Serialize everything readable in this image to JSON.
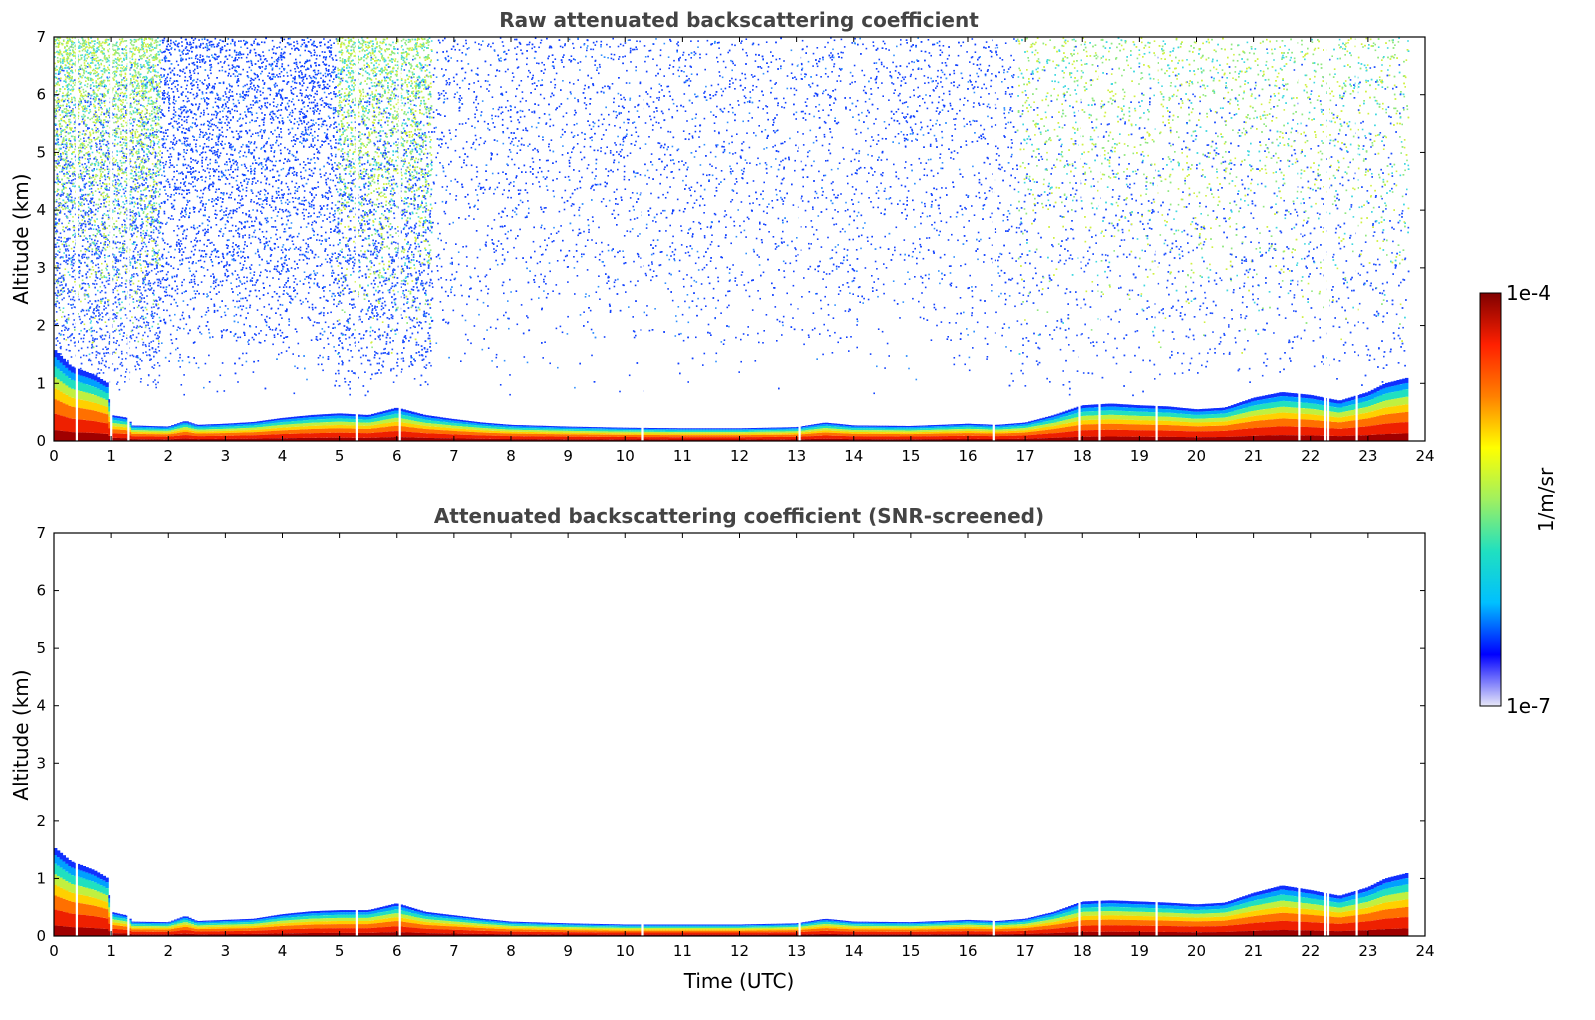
{
  "chart_data": [
    {
      "type": "heatmap",
      "title": "Raw attenuated backscattering coefficient",
      "xlabel": "",
      "ylabel": "Altitude (km)",
      "xlim": [
        0,
        24
      ],
      "ylim": [
        0,
        7
      ],
      "xticks": [
        "0",
        "1",
        "2",
        "3",
        "4",
        "5",
        "6",
        "7",
        "8",
        "9",
        "10",
        "11",
        "12",
        "13",
        "14",
        "15",
        "16",
        "17",
        "18",
        "19",
        "20",
        "21",
        "22",
        "23",
        "24"
      ],
      "yticks": [
        "0",
        "1",
        "2",
        "3",
        "4",
        "5",
        "6",
        "7"
      ],
      "data_end_hour": 23.7,
      "noise_fill": true,
      "noise_blocks": [
        {
          "x0": 0.0,
          "x1": 1.85,
          "strength": "high"
        },
        {
          "x0": 1.85,
          "x1": 4.95,
          "strength": "low"
        },
        {
          "x0": 4.95,
          "x1": 6.6,
          "strength": "high"
        },
        {
          "x0": 6.6,
          "x1": 16.85,
          "strength": "low"
        },
        {
          "x0": 16.85,
          "x1": 23.7,
          "strength": "high"
        }
      ],
      "boundary_layer_top_km": {
        "x": [
          0,
          0.3,
          0.7,
          0.95,
          1.0,
          1.3,
          1.35,
          2.0,
          2.3,
          2.5,
          3.0,
          3.5,
          4.0,
          4.5,
          5.0,
          5.5,
          6.0,
          6.5,
          7.0,
          7.5,
          8.0,
          9.0,
          10.0,
          11.0,
          12.0,
          13.0,
          13.5,
          14.0,
          15.0,
          16.0,
          16.5,
          17.0,
          17.5,
          18.0,
          18.5,
          19.0,
          19.5,
          20.0,
          20.5,
          21.0,
          21.5,
          22.0,
          22.5,
          23.0,
          23.3,
          23.7
        ],
        "y": [
          1.6,
          1.3,
          1.15,
          1.0,
          0.45,
          0.4,
          0.27,
          0.25,
          0.35,
          0.28,
          0.3,
          0.33,
          0.4,
          0.45,
          0.48,
          0.45,
          0.58,
          0.45,
          0.38,
          0.32,
          0.28,
          0.25,
          0.23,
          0.22,
          0.22,
          0.24,
          0.32,
          0.27,
          0.26,
          0.3,
          0.28,
          0.32,
          0.45,
          0.62,
          0.65,
          0.62,
          0.6,
          0.55,
          0.58,
          0.75,
          0.85,
          0.8,
          0.7,
          0.85,
          1.0,
          1.1
        ]
      },
      "data_gaps_hours": [
        0.4,
        1.0,
        1.3,
        5.3,
        6.05,
        10.3,
        13.05,
        16.45,
        17.95,
        18.3,
        19.3,
        21.8,
        22.25,
        22.3,
        22.8
      ]
    },
    {
      "type": "heatmap",
      "title": "Attenuated backscattering coefficient (SNR-screened)",
      "xlabel": "Time (UTC)",
      "ylabel": "Altitude (km)",
      "xlim": [
        0,
        24
      ],
      "ylim": [
        0,
        7
      ],
      "xticks": [
        "0",
        "1",
        "2",
        "3",
        "4",
        "5",
        "6",
        "7",
        "8",
        "9",
        "10",
        "11",
        "12",
        "13",
        "14",
        "15",
        "16",
        "17",
        "18",
        "19",
        "20",
        "21",
        "22",
        "23",
        "24"
      ],
      "yticks": [
        "0",
        "1",
        "2",
        "3",
        "4",
        "5",
        "6",
        "7"
      ],
      "data_end_hour": 23.7,
      "noise_fill": false,
      "noise_blocks": [],
      "boundary_layer_top_km": {
        "x": [
          0,
          0.3,
          0.7,
          0.95,
          1.0,
          1.3,
          1.35,
          2.0,
          2.3,
          2.5,
          3.0,
          3.5,
          4.0,
          4.5,
          5.0,
          5.5,
          6.0,
          6.5,
          7.0,
          7.5,
          8.0,
          9.0,
          10.0,
          11.0,
          12.0,
          13.0,
          13.5,
          14.0,
          15.0,
          16.0,
          16.5,
          17.0,
          17.5,
          18.0,
          18.5,
          19.0,
          19.5,
          20.0,
          20.5,
          21.0,
          21.5,
          22.0,
          22.5,
          23.0,
          23.3,
          23.7
        ],
        "y": [
          1.55,
          1.3,
          1.15,
          1.0,
          0.42,
          0.35,
          0.25,
          0.24,
          0.35,
          0.26,
          0.28,
          0.3,
          0.38,
          0.43,
          0.45,
          0.45,
          0.57,
          0.42,
          0.36,
          0.3,
          0.25,
          0.22,
          0.2,
          0.2,
          0.2,
          0.22,
          0.3,
          0.25,
          0.24,
          0.28,
          0.26,
          0.3,
          0.42,
          0.6,
          0.62,
          0.6,
          0.58,
          0.55,
          0.58,
          0.75,
          0.88,
          0.8,
          0.7,
          0.85,
          1.0,
          1.1
        ]
      },
      "data_gaps_hours": [
        0.4,
        1.0,
        1.3,
        5.3,
        6.05,
        10.3,
        13.05,
        16.45,
        17.95,
        18.3,
        19.3,
        21.8,
        22.25,
        22.3,
        22.8
      ]
    }
  ],
  "colorbar": {
    "label": "1/m/sr",
    "max_label": "1e-4",
    "min_label": "1e-7",
    "colormap": [
      "#e8e8f8",
      "#0000ff",
      "#00c0ff",
      "#20e0c0",
      "#a0f060",
      "#ffff00",
      "#ff8000",
      "#ff2000",
      "#800000"
    ]
  }
}
